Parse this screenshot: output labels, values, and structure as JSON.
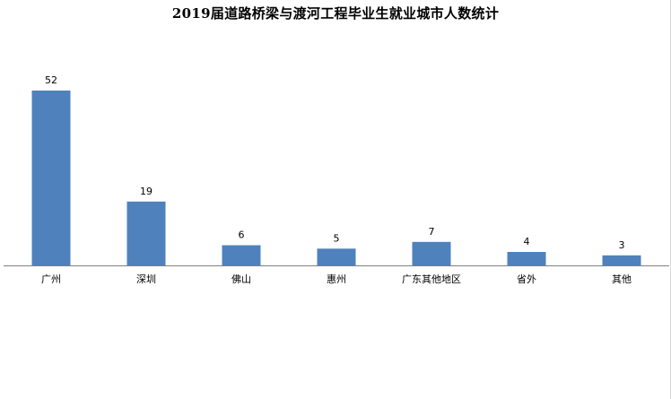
{
  "chart_data": {
    "type": "bar",
    "title": "2019届道路桥梁与渡河工程毕业生就业城市人数统计",
    "categories": [
      "广州",
      "深圳",
      "佛山",
      "惠州",
      "广东其他地区",
      "省外",
      "其他"
    ],
    "values": [
      52,
      19,
      6,
      5,
      7,
      4,
      3
    ],
    "xlabel": "",
    "ylabel": "",
    "ylim": [
      0,
      52
    ],
    "grid": false,
    "legend": "none",
    "data_labels": true,
    "bar_color": "#4f81bd",
    "axis_color": "#808080"
  }
}
